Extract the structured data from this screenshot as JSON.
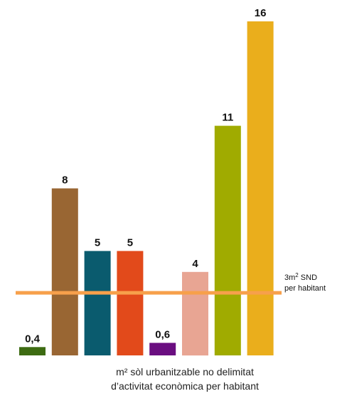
{
  "chart_data": {
    "type": "bar",
    "values": [
      0.4,
      8,
      5,
      5,
      0.6,
      4,
      11,
      16
    ],
    "value_labels": [
      "0,4",
      "8",
      "5",
      "5",
      "0,6",
      "4",
      "11",
      "16"
    ],
    "colors": [
      "#3d6b12",
      "#996633",
      "#0a5b6e",
      "#e24a1b",
      "#6a0e80",
      "#e8a593",
      "#a0ab00",
      "#eaae1c"
    ],
    "ylim": [
      0,
      16
    ],
    "grid": false,
    "reference_line": {
      "value": 3,
      "color": "#f7a04b",
      "label_main": "3m",
      "label_sup": "2",
      "label_rest": " SND",
      "label_line2": "per habitant"
    },
    "caption": {
      "line1": "m² sòl urbanitzable no delimitat",
      "line2": "d’activitat econòmica per habitant"
    }
  }
}
